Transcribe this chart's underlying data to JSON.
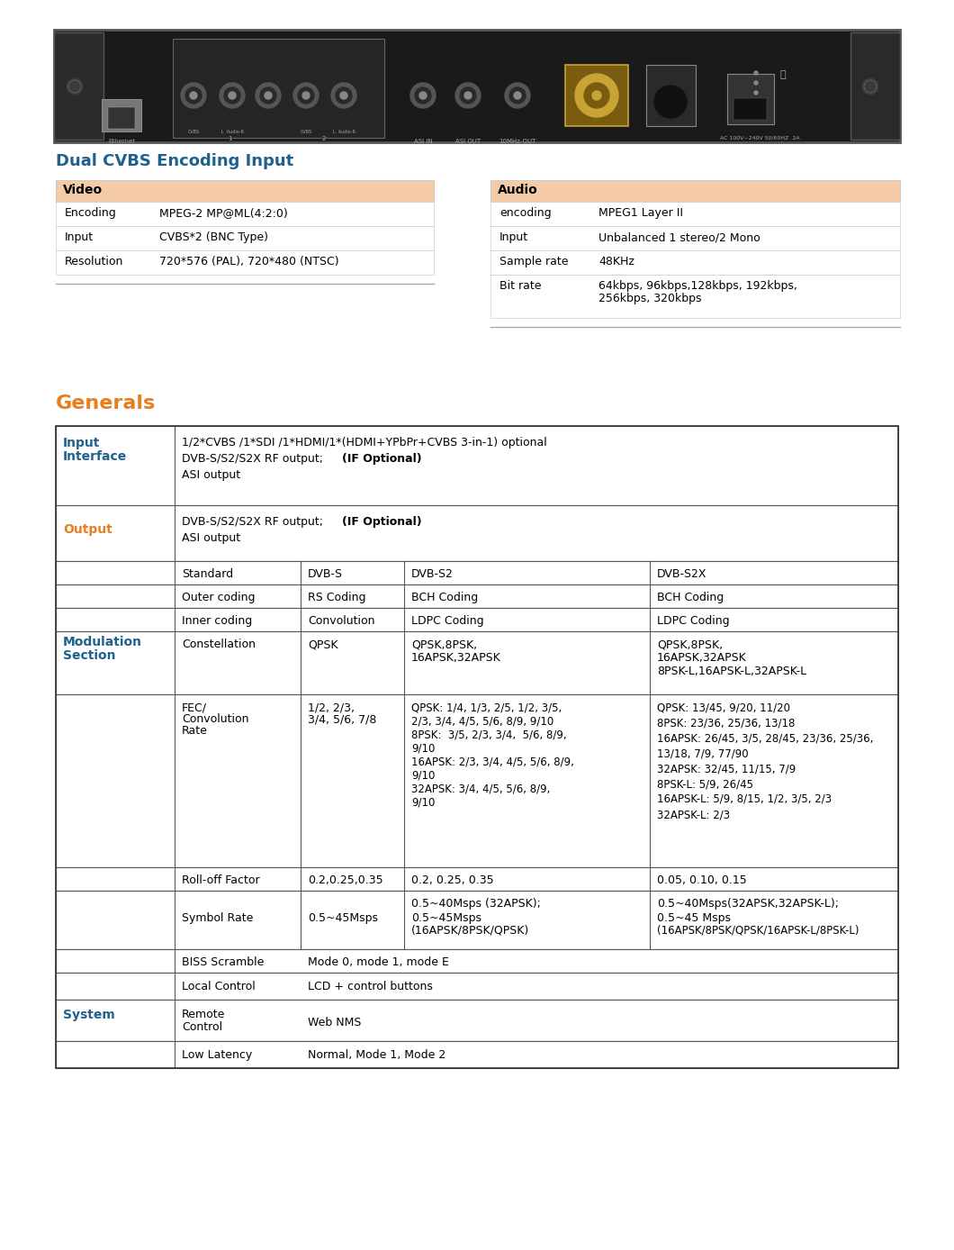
{
  "title_section": "Dual CVBS Encoding Input",
  "generals_title": "Generals",
  "video_header": "Video",
  "audio_header": "Audio",
  "video_rows": [
    [
      "Encoding",
      "MPEG-2 MP@ML(4:2:0)"
    ],
    [
      "Input",
      "CVBS*2 (BNC Type)"
    ],
    [
      "Resolution",
      "720*576 (PAL), 720*480 (NTSC)"
    ]
  ],
  "audio_rows": [
    [
      "encoding",
      "MPEG1 Layer II"
    ],
    [
      "Input",
      "Unbalanced 1 stereo/2 Mono"
    ],
    [
      "Sample rate",
      "48KHz"
    ],
    [
      "Bit rate",
      "64kbps, 96kbps,128kbps, 192kbps,\n256kbps, 320kbps"
    ]
  ],
  "header_bg": "#F5CBA7",
  "title_color": "#1F618D",
  "generals_color": "#E67E22",
  "modulation_color": "#1F618D",
  "system_color": "#1F618D",
  "output_color": "#E67E22",
  "input_interface_color": "#1F618D",
  "fec_s2": [
    "QPSK: 1/4, 1/3, 2/5, 1/2, 3/5,",
    "2/3, 3/4, 4/5, 5/6, 8/9, 9/10",
    "8PSK:  3/5, 2/3, 3/4,  5/6, 8/9,",
    "9/10",
    "16APSK: 2/3, 3/4, 4/5, 5/6, 8/9,",
    "9/10",
    "32APSK: 3/4, 4/5, 5/6, 8/9,",
    "9/10"
  ],
  "fec_s2x": [
    "QPSK: 13/45, 9/20, 11/20",
    "8PSK: 23/36, 25/36, 13/18",
    "16APSK: 26/45, 3/5, 28/45, 23/36, 25/36,",
    "13/18, 7/9, 77/90",
    "32APSK: 32/45, 11/15, 7/9",
    "8PSK-L: 5/9, 26/45",
    "16APSK-L: 5/9, 8/15, 1/2, 3/5, 2/3",
    "32APSK-L: 2/3"
  ]
}
